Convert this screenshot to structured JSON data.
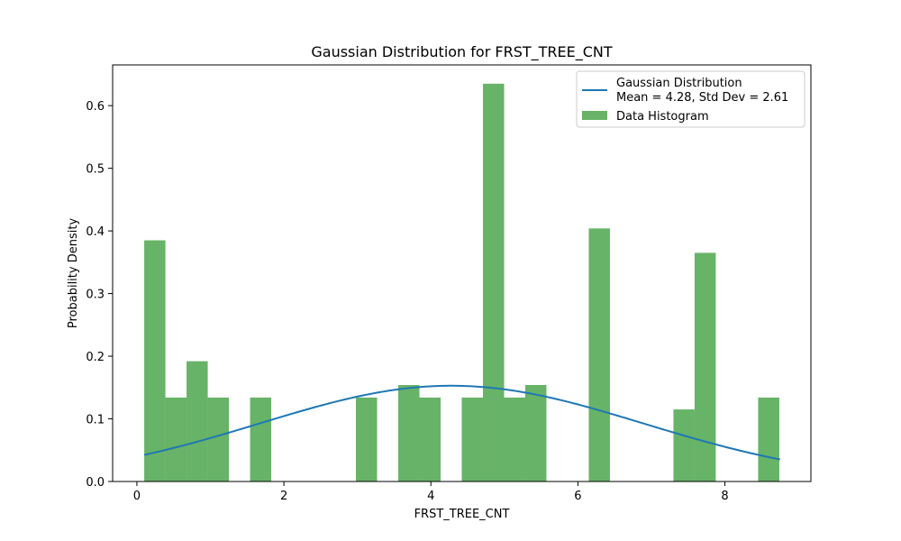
{
  "chart_data": {
    "type": "bar",
    "title": "Gaussian Distribution for FRST_TREE_CNT",
    "xlabel": "FRST_TREE_CNT",
    "ylabel": "Probability Density",
    "xlim": [
      -0.33,
      9.17
    ],
    "ylim": [
      0.0,
      0.665
    ],
    "xticks": [
      0,
      2,
      4,
      6,
      8
    ],
    "xtick_labels": [
      "0",
      "2",
      "4",
      "6",
      "8"
    ],
    "yticks": [
      0.0,
      0.1,
      0.2,
      0.3,
      0.4,
      0.5,
      0.6
    ],
    "ytick_labels": [
      "0.0",
      "0.1",
      "0.2",
      "0.3",
      "0.4",
      "0.5",
      "0.6"
    ],
    "grid": false,
    "legend_position": "top-right",
    "histogram": {
      "name": "Data Histogram",
      "color": "#4ca64c",
      "bin_start": 0.1,
      "bin_width": 0.288,
      "values": [
        0.385,
        0.134,
        0.192,
        0.134,
        0,
        0.134,
        0,
        0,
        0,
        0,
        0.134,
        0,
        0.154,
        0.134,
        0,
        0.134,
        0.635,
        0.134,
        0.154,
        0,
        0,
        0.404,
        0,
        0,
        0,
        0.115,
        0.365,
        0,
        0,
        0.134
      ]
    },
    "gaussian": {
      "name": "Gaussian Distribution",
      "legend_lines": [
        "Gaussian Distribution",
        "Mean = 4.28, Std Dev = 2.61"
      ],
      "mean": 4.28,
      "std": 2.61,
      "x_range": [
        0.1,
        8.75
      ],
      "color": "#1f77b4"
    }
  }
}
